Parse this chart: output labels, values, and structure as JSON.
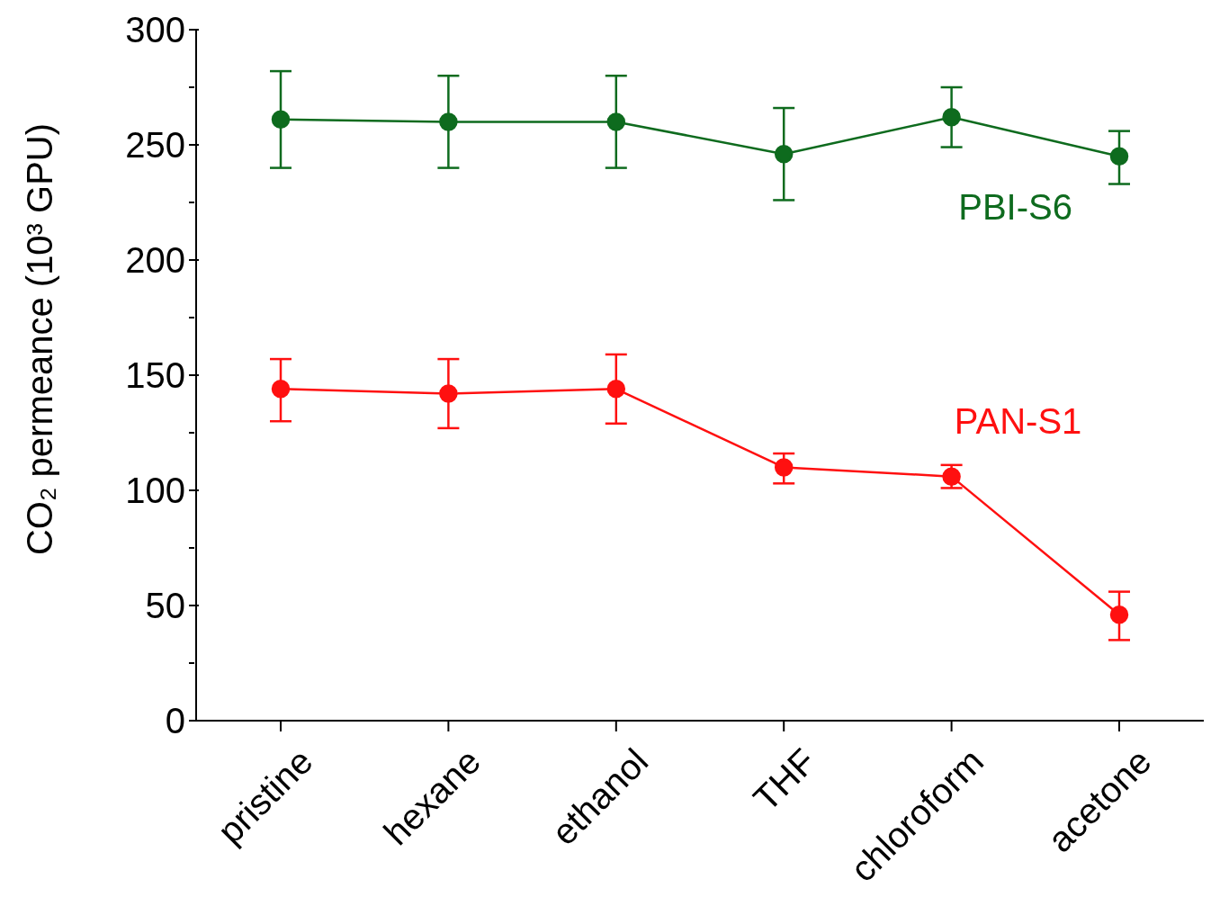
{
  "chart_data": {
    "type": "line",
    "ylabel": "CO₂ permeance (10³ GPU)",
    "categories": [
      "pristine",
      "hexane",
      "ethanol",
      "THF",
      "chloroform",
      "acetone"
    ],
    "ylim": [
      0,
      300
    ],
    "yticks": [
      0,
      {
        "value": 25,
        "label": null
      },
      50,
      {
        "value": 75,
        "label": null
      },
      100,
      {
        "value": 125,
        "label": null
      },
      150,
      {
        "value": 175,
        "label": null
      },
      200,
      {
        "value": 225,
        "label": null
      },
      250,
      {
        "value": 275,
        "label": null
      },
      300
    ],
    "marker": "circle",
    "line_style": "solid",
    "series": [
      {
        "name": "PBI-S6",
        "color": "#0e6b1e",
        "values": [
          261,
          260,
          260,
          246,
          262,
          245
        ],
        "errors": [
          [
            240,
            282
          ],
          [
            240,
            280
          ],
          [
            240,
            280
          ],
          [
            226,
            266
          ],
          [
            249,
            275
          ],
          [
            233,
            256
          ]
        ]
      },
      {
        "name": "PAN-S1",
        "color": "#ff1010",
        "values": [
          144,
          142,
          144,
          110,
          106,
          46
        ],
        "errors": [
          [
            130,
            157
          ],
          [
            127,
            157
          ],
          [
            129,
            159
          ],
          [
            103,
            116
          ],
          [
            101,
            111
          ],
          [
            35,
            56
          ]
        ]
      }
    ]
  }
}
